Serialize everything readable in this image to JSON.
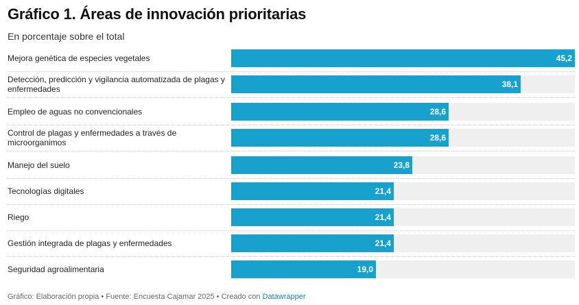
{
  "header": {
    "title": "Gráfico 1. Áreas de innovación prioritarias",
    "subtitle": "En porcentaje sobre el total"
  },
  "chart_data": {
    "type": "bar",
    "orientation": "horizontal",
    "title": "Gráfico 1. Áreas de innovación prioritarias",
    "subtitle": "En porcentaje sobre el total",
    "categories": [
      "Mejora genética de especies vegetales",
      "Detección, predicción y vigilancia automatizada de plagas y enfermedades",
      "Empleo de aguas no convencionales",
      "Control de plagas y enfermedades a través de microorganimos",
      "Manejo del suelo",
      "Tecnologías digitales",
      "Riego",
      "Gestión integrada de plagas y enfermedades",
      "Seguridad agroalimentaria"
    ],
    "values": [
      45.2,
      38.1,
      28.6,
      28.6,
      23.8,
      21.4,
      21.4,
      21.4,
      19.0
    ],
    "value_labels": [
      "45,2",
      "38,1",
      "28,6",
      "28,6",
      "23,8",
      "21,4",
      "21,4",
      "21,4",
      "19,0"
    ],
    "xlim": [
      0,
      45.2
    ],
    "bar_color": "#18a1cd",
    "track_color": "#efefef",
    "grid": false
  },
  "footer": {
    "text": "Gráfico: Elaboración propia • Fuente: Encuesta Cajamar 2025 • Creado con ",
    "link_label": "Datawrapper"
  }
}
